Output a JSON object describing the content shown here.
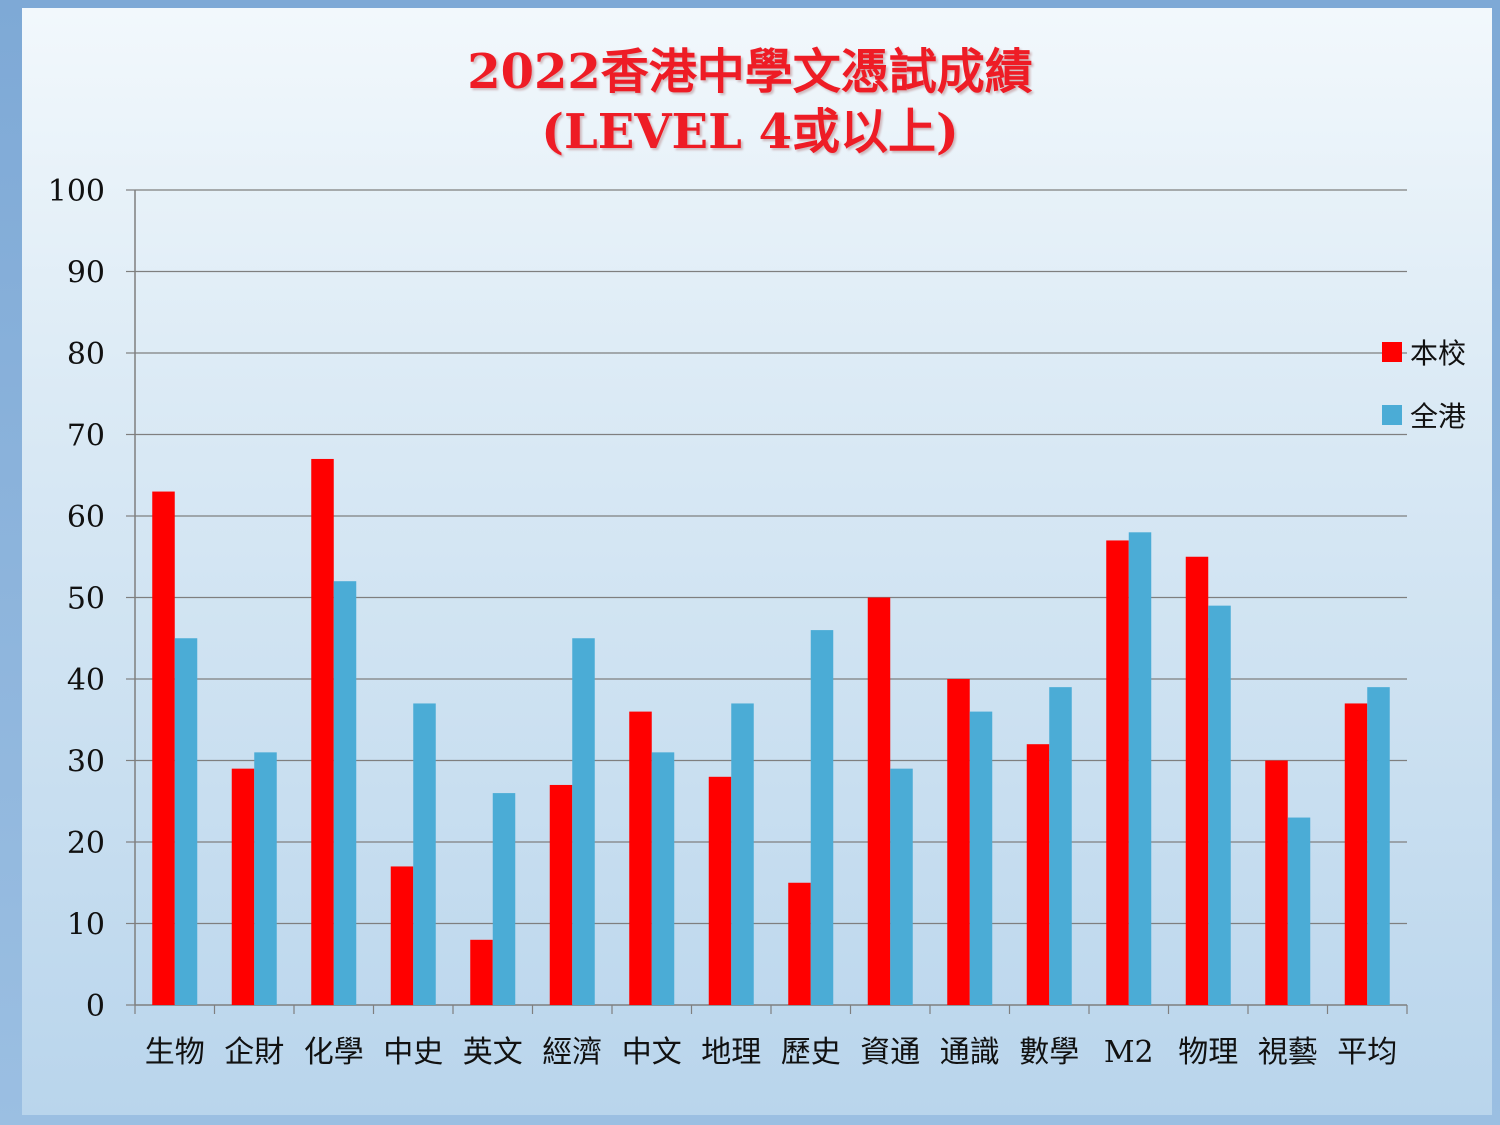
{
  "chart_data": {
    "type": "bar",
    "title": "2022香港中學文憑試成績",
    "subtitle": "(LEVEL 4或以上)",
    "categories": [
      "生物",
      "企財",
      "化學",
      "中史",
      "英文",
      "經濟",
      "中文",
      "地理",
      "歷史",
      "資通",
      "通識",
      "數學",
      "M2",
      "物理",
      "視藝",
      "平均"
    ],
    "series": [
      {
        "name": "本校",
        "color": "#ff0000",
        "values": [
          63,
          29,
          67,
          17,
          8,
          27,
          36,
          28,
          15,
          50,
          40,
          32,
          57,
          55,
          30,
          37
        ]
      },
      {
        "name": "全港",
        "color": "#4bacd6",
        "values": [
          45,
          31,
          52,
          37,
          26,
          45,
          31,
          37,
          46,
          29,
          36,
          39,
          58,
          49,
          23,
          39
        ]
      }
    ],
    "ylim": [
      0,
      100
    ],
    "yticks": [
      0,
      10,
      20,
      30,
      40,
      50,
      60,
      70,
      80,
      90,
      100
    ],
    "grid": true,
    "legend": "right"
  },
  "colors": {
    "title": "#ee1c25",
    "gridline": "#808080"
  }
}
